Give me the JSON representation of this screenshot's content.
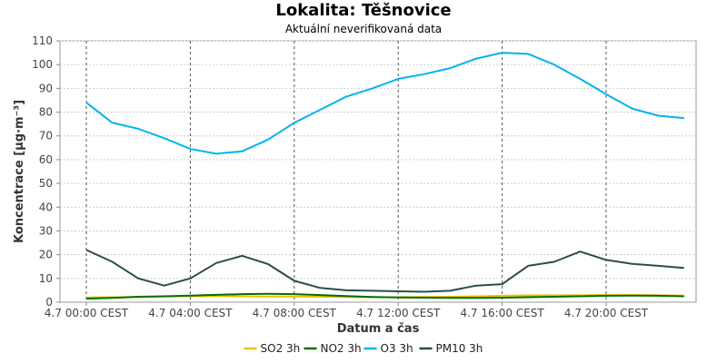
{
  "chart_data": {
    "type": "line",
    "title": "Lokalita: Těšnovice",
    "subtitle": "Aktuální neverifikovaná data",
    "xlabel": "Datum a čas",
    "ylabel": "Koncentrace [µg·m⁻³]",
    "ylim": [
      0,
      110
    ],
    "yticks": [
      0,
      10,
      20,
      30,
      40,
      50,
      60,
      70,
      80,
      90,
      100,
      110
    ],
    "x_hours": [
      0,
      1,
      2,
      3,
      4,
      5,
      6,
      7,
      8,
      9,
      10,
      11,
      12,
      13,
      14,
      15,
      16,
      17,
      18,
      19,
      20,
      21,
      22,
      23
    ],
    "x_tick_hours": [
      0,
      4,
      8,
      12,
      16,
      20
    ],
    "x_tick_labels": [
      "4.7 00:00 CEST",
      "4.7 04:00 CEST",
      "4.7 08:00 CEST",
      "4.7 12:00 CEST",
      "4.7 16:00 CEST",
      "4.7 20:00 CEST"
    ],
    "grid": true,
    "legend_position": "bottom",
    "series": [
      {
        "name": "SO2 3h",
        "color": "#f0c000",
        "values": [
          2.0,
          2.1,
          2.2,
          2.4,
          2.6,
          2.6,
          2.5,
          2.4,
          2.4,
          2.3,
          2.2,
          2.1,
          2.1,
          2.2,
          2.3,
          2.5,
          2.7,
          2.9,
          2.9,
          2.9,
          3.0,
          3.0,
          2.9,
          2.8
        ]
      },
      {
        "name": "NO2 3h",
        "color": "#007000",
        "values": [
          1.5,
          1.8,
          2.3,
          2.5,
          2.8,
          3.1,
          3.4,
          3.5,
          3.4,
          3.0,
          2.6,
          2.2,
          2.0,
          1.9,
          1.8,
          1.8,
          1.9,
          2.1,
          2.3,
          2.5,
          2.7,
          2.8,
          2.7,
          2.5
        ]
      },
      {
        "name": "O3 3h",
        "color": "#00b4f0",
        "values": [
          84,
          75.5,
          73,
          69,
          64.5,
          62.5,
          63.5,
          68.5,
          75.5,
          81,
          86.5,
          90,
          94,
          96,
          98.5,
          102.5,
          105,
          104.5,
          100,
          94,
          87.5,
          81.5,
          78.5,
          77.5
        ]
      },
      {
        "name": "PM10 3h",
        "color": "#2e4b4b",
        "values": [
          22,
          17,
          10,
          7,
          10,
          16.5,
          19.5,
          16,
          9,
          6,
          5,
          4.8,
          4.6,
          4.4,
          4.8,
          7,
          7.6,
          15.3,
          17,
          21.3,
          17.8,
          16.1,
          15.3,
          14.4
        ]
      }
    ]
  }
}
